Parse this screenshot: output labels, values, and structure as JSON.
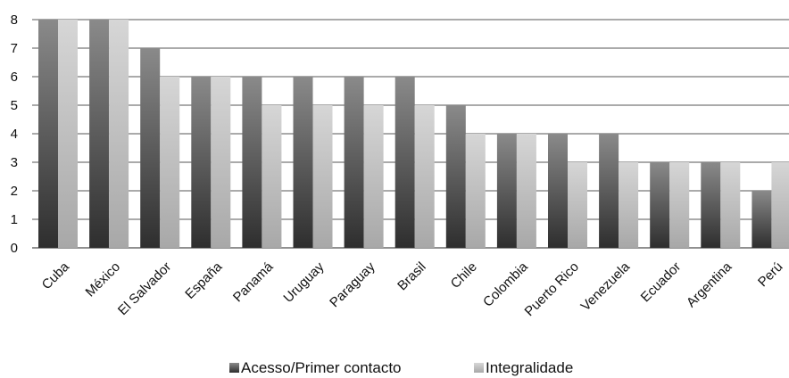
{
  "chart_data": {
    "type": "bar",
    "title": "",
    "xlabel": "",
    "ylabel": "",
    "ylim": [
      0,
      8
    ],
    "yticks": [
      0,
      1,
      2,
      3,
      4,
      5,
      6,
      7,
      8
    ],
    "grid": true,
    "legend_position": "bottom",
    "categories": [
      "Cuba",
      "México",
      "El Salvador",
      "España",
      "Panamá",
      "Uruguay",
      "Paraguay",
      "Brasil",
      "Chile",
      "Colombia",
      "Puerto Rico",
      "Venezuela",
      "Ecuador",
      "Argentina",
      "Perú"
    ],
    "series": [
      {
        "name": "Acesso/Primer contacto",
        "color": "#555555",
        "values": [
          8,
          8,
          7,
          6,
          6,
          6,
          6,
          6,
          5,
          4,
          4,
          4,
          3,
          3,
          2
        ]
      },
      {
        "name": "Integralidade",
        "color": "#bdbdbd",
        "values": [
          8,
          8,
          6,
          6,
          5,
          5,
          5,
          5,
          4,
          4,
          3,
          3,
          3,
          3,
          3
        ]
      }
    ]
  }
}
